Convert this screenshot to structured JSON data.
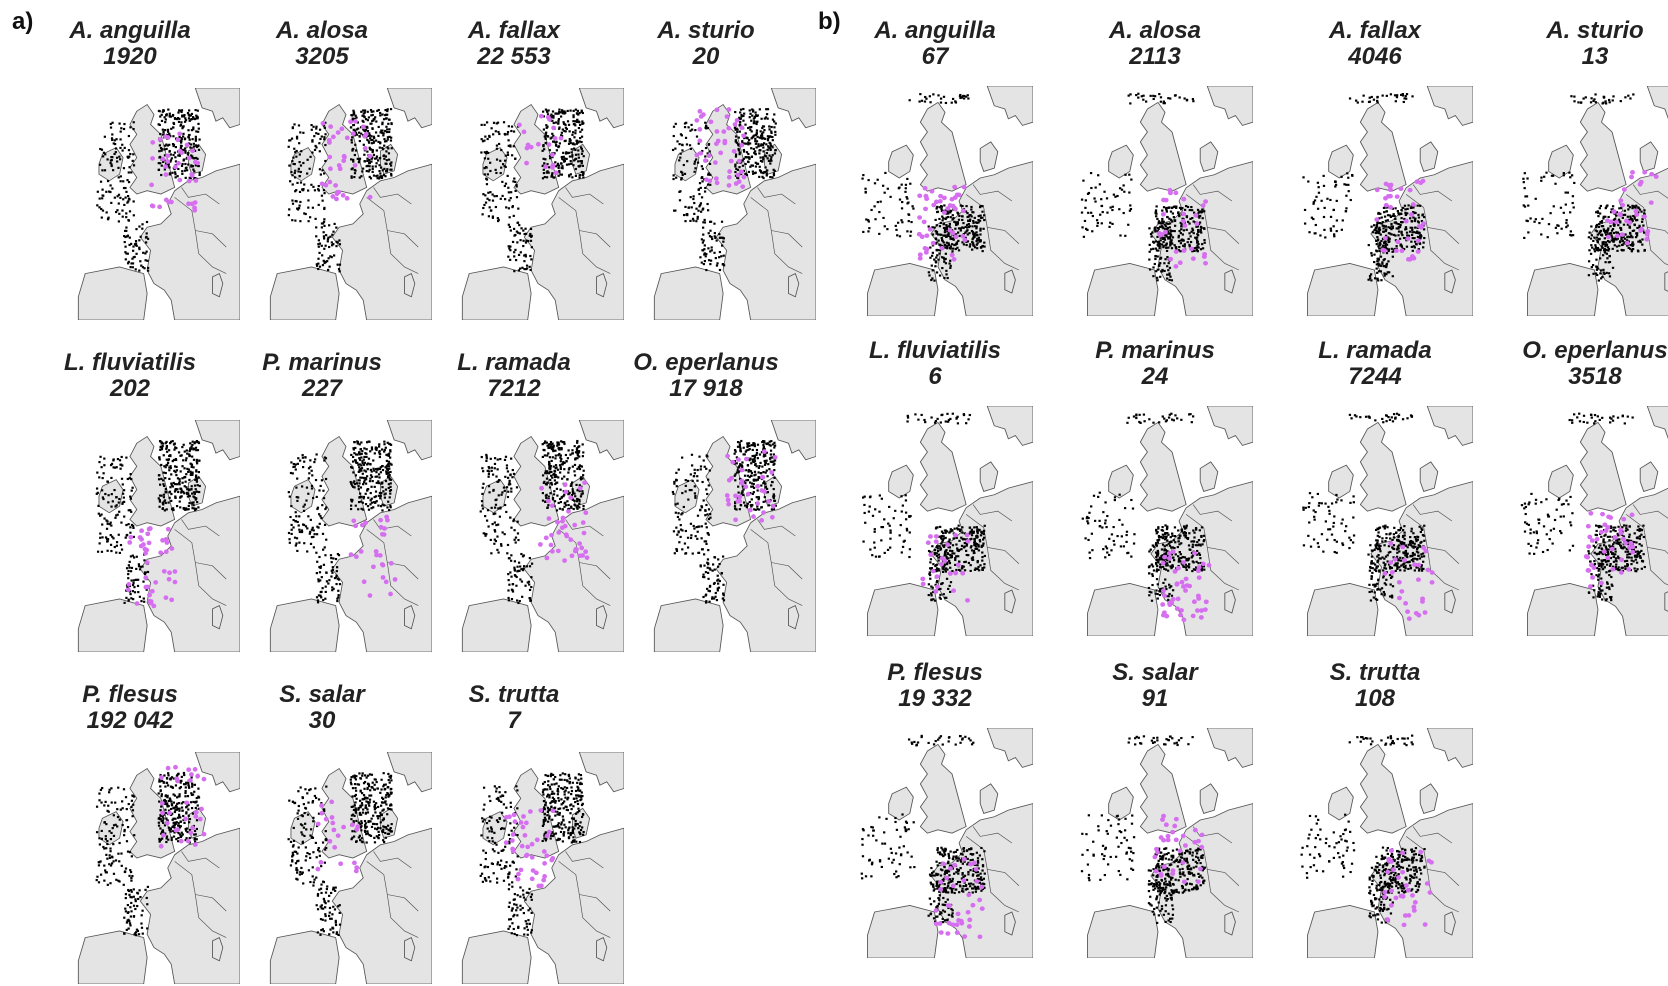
{
  "panels": [
    {
      "id": "a",
      "label": "a)",
      "items": [
        {
          "species": "A. anguilla",
          "count": "1920",
          "shade": "#000000"
        },
        {
          "species": "A. alosa",
          "count": "3205",
          "shade": "#000000"
        },
        {
          "species": "A. fallax",
          "count": "22 553",
          "shade": "#000000"
        },
        {
          "species": "A. sturio",
          "count": "20",
          "shade": "#000000"
        },
        {
          "species": "L. fluviatilis",
          "count": "202",
          "shade": "#000000"
        },
        {
          "species": "P. marinus",
          "count": "227",
          "shade": "#000000"
        },
        {
          "species": "L. ramada",
          "count": "7212",
          "shade": "#000000"
        },
        {
          "species": "O. eperlanus",
          "count": "17 918",
          "shade": "#000000"
        },
        {
          "species": "P. flesus",
          "count": "192 042",
          "shade": "#000000"
        },
        {
          "species": "S. salar",
          "count": "30",
          "shade": "#000000"
        },
        {
          "species": "S. trutta",
          "count": "7",
          "shade": "#000000"
        }
      ]
    },
    {
      "id": "b",
      "label": "b)",
      "items": [
        {
          "species": "A. anguilla",
          "count": "67",
          "shade": "#000000"
        },
        {
          "species": "A. alosa",
          "count": "2113",
          "shade": "#000000"
        },
        {
          "species": "A. fallax",
          "count": "4046",
          "shade": "#000000"
        },
        {
          "species": "A. sturio",
          "count": "13",
          "shade": "#000000"
        },
        {
          "species": "L. fluviatilis",
          "count": "6",
          "shade": "#000000"
        },
        {
          "species": "P. marinus",
          "count": "24",
          "shade": "#000000"
        },
        {
          "species": "L. ramada",
          "count": "7244",
          "shade": "#000000"
        },
        {
          "species": "O. eperlanus",
          "count": "3518",
          "shade": "#000000"
        },
        {
          "species": "P. flesus",
          "count": "19 332",
          "shade": "#000000"
        },
        {
          "species": "S. salar",
          "count": "91",
          "shade": "#000000"
        },
        {
          "species": "S. trutta",
          "count": "108",
          "shade": "#000000"
        }
      ]
    }
  ],
  "colors": {
    "land": "#e4e4e4",
    "land_outline": "#555555",
    "absence": "#000000",
    "presence": "#d66ef0",
    "background": "#ffffff"
  }
}
